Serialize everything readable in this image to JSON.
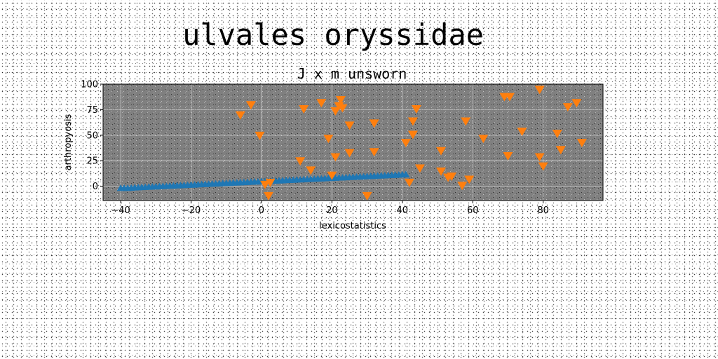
{
  "figure": {
    "suptitle": "ulvales oryssidae"
  },
  "chart_data": {
    "type": "scatter",
    "title": "J x m unsworn",
    "xlabel": "lexicostatistics",
    "ylabel": "arthropyosis",
    "xlim": [
      -45,
      97
    ],
    "ylim": [
      -14,
      100
    ],
    "x_ticks": [
      -40,
      -20,
      0,
      20,
      40,
      60,
      80
    ],
    "y_ticks": [
      0,
      25,
      50,
      75,
      100
    ],
    "grid": true,
    "background": "#808080",
    "series": [
      {
        "marker": "triangle-up",
        "color": "#1f77b4",
        "x": [
          -40,
          -39,
          -38,
          -37,
          -36,
          -35,
          -34,
          -33,
          -32,
          -31,
          -30,
          -29,
          -28,
          -27,
          -26,
          -25,
          -24,
          -23,
          -22,
          -21,
          -20,
          -19,
          -18,
          -17,
          -16,
          -15,
          -14,
          -13,
          -12,
          -11,
          -10,
          -9,
          -8,
          -7,
          -6,
          -5,
          -4,
          -3,
          -2,
          -1,
          0,
          1,
          2,
          3,
          4,
          5,
          6,
          7,
          8,
          9,
          10,
          11,
          12,
          13,
          14,
          15,
          16,
          17,
          18,
          19,
          20,
          21,
          22,
          23,
          24,
          25,
          26,
          27,
          28,
          29,
          30,
          31,
          32,
          33,
          34,
          35,
          36,
          37,
          38,
          39,
          40,
          41
        ],
        "y": [
          -2,
          -2,
          -2,
          -1.7,
          -1.5,
          -1.3,
          -1.1,
          -1,
          -0.8,
          -0.6,
          -0.5,
          -0.3,
          -0.2,
          0,
          0.2,
          0.3,
          0.5,
          0.7,
          0.8,
          1,
          1.2,
          1.3,
          1.5,
          1.7,
          1.8,
          2,
          2.2,
          2.3,
          2.5,
          2.7,
          2.8,
          3,
          3.2,
          3.3,
          3.5,
          3.7,
          3.8,
          4,
          4.2,
          4.3,
          4.5,
          4.7,
          4.8,
          5,
          5.2,
          5.3,
          5.5,
          5.7,
          5.8,
          6,
          6.2,
          6.3,
          6.5,
          6.7,
          6.8,
          7,
          7.2,
          7.3,
          7.5,
          7.7,
          7.8,
          8,
          8.2,
          8.3,
          8.5,
          8.7,
          8.8,
          9,
          9.2,
          9.3,
          9.5,
          9.7,
          9.8,
          10,
          10.2,
          10.3,
          10.5,
          10.7,
          10.8,
          11,
          11.2,
          11.3
        ]
      },
      {
        "marker": "triangle-down",
        "color": "#ff7f0e",
        "x": [
          -6,
          -3,
          -0.5,
          1,
          2,
          2.5,
          11,
          12,
          14,
          17,
          19,
          20,
          21,
          21,
          22,
          22.5,
          23,
          25,
          25,
          30,
          32,
          32,
          41,
          42,
          43,
          43,
          44,
          45,
          51,
          51,
          53,
          54,
          57,
          58,
          59,
          63,
          69,
          70,
          70.5,
          74,
          79,
          79,
          80,
          84,
          85,
          87,
          89.5,
          91
        ],
        "y": [
          70,
          80,
          50,
          2,
          -9,
          4,
          25,
          76,
          16,
          82,
          47,
          11,
          29,
          74,
          79,
          85,
          77,
          60,
          33,
          -9,
          62,
          34,
          43,
          4,
          64,
          51,
          76,
          18,
          35,
          15,
          9,
          10,
          1,
          64,
          7,
          47,
          88,
          30,
          88,
          54,
          95,
          29,
          20,
          52,
          36,
          78,
          82,
          43
        ]
      }
    ]
  }
}
